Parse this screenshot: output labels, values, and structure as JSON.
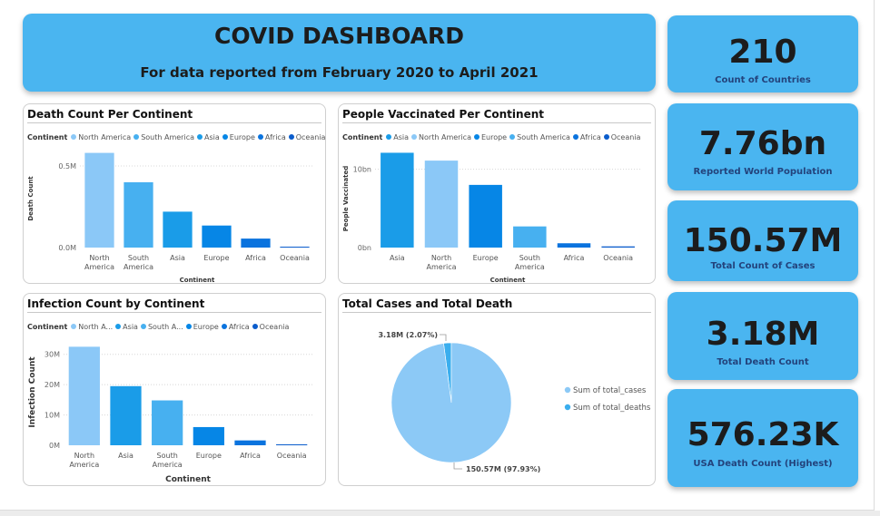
{
  "header": {
    "title": "COVID DASHBOARD",
    "subtitle": "For data reported from February 2020 to April 2021"
  },
  "kpis": [
    {
      "value": "210",
      "label": "Count of Countries"
    },
    {
      "value": "7.76bn",
      "label": "Reported World Population"
    },
    {
      "value": "150.57M",
      "label": "Total Count of Cases"
    },
    {
      "value": "3.18M",
      "label": "Total Death Count"
    },
    {
      "value": "576.23K",
      "label": "USA Death Count (Highest)"
    }
  ],
  "colors": {
    "accent": "#4ab5f0",
    "kpi_label": "#23437c",
    "north_america": "#8bc8f7",
    "south_america": "#47b0f0",
    "asia": "#1a9ce8",
    "europe": "#0686e6",
    "africa": "#0a73de",
    "oceania": "#0a5ccc",
    "pie_cases": "#8cc9f6",
    "pie_deaths": "#3aaeee"
  },
  "panels": {
    "death": {
      "title": "Death Count Per Continent",
      "legend_title": "Continent",
      "legend": [
        "North America",
        "South America",
        "Asia",
        "Europe",
        "Africa",
        "Oceania"
      ]
    },
    "vacc": {
      "title": "People Vaccinated Per Continent",
      "legend_title": "Continent",
      "legend": [
        "Asia",
        "North America",
        "Europe",
        "South America",
        "Africa",
        "Oceania"
      ]
    },
    "infection": {
      "title": "Infection Count by Continent",
      "legend_title": "Continent",
      "legend": [
        "North A...",
        "Asia",
        "South A...",
        "Europe",
        "Africa",
        "Oceania"
      ]
    },
    "pie": {
      "title": "Total Cases and Total Death"
    }
  },
  "chart_data": [
    {
      "type": "bar",
      "title": "Death Count Per Continent",
      "xlabel": "Continent",
      "ylabel": "Death Count",
      "categories": [
        "North America",
        "South America",
        "Asia",
        "Europe",
        "Africa",
        "Oceania"
      ],
      "category_lines": [
        [
          "North",
          "America"
        ],
        [
          "South",
          "America"
        ],
        [
          "Asia"
        ],
        [
          "Europe"
        ],
        [
          "Africa"
        ],
        [
          "Oceania"
        ]
      ],
      "values": [
        0.58,
        0.4,
        0.22,
        0.135,
        0.055,
        0.005
      ],
      "value_unit": "M",
      "ylim": [
        0,
        0.6
      ],
      "yticks": [
        {
          "v": 0,
          "label": "0.0M"
        },
        {
          "v": 0.5,
          "label": "0.5M"
        }
      ],
      "grid": true
    },
    {
      "type": "bar",
      "title": "People Vaccinated Per Continent",
      "xlabel": "Continent",
      "ylabel": "People Vaccinated",
      "categories": [
        "Asia",
        "North America",
        "Europe",
        "South America",
        "Africa",
        "Oceania"
      ],
      "category_lines": [
        [
          "Asia"
        ],
        [
          "North",
          "America"
        ],
        [
          "Europe"
        ],
        [
          "South",
          "America"
        ],
        [
          "Africa"
        ],
        [
          "Oceania"
        ]
      ],
      "values": [
        12.1,
        11.1,
        8.0,
        2.7,
        0.55,
        0.15
      ],
      "value_unit": "bn",
      "ylim": [
        0,
        12.5
      ],
      "yticks": [
        {
          "v": 0,
          "label": "0bn"
        },
        {
          "v": 10,
          "label": "10bn"
        }
      ],
      "grid": true
    },
    {
      "type": "bar",
      "title": "Infection Count by Continent",
      "xlabel": "Continent",
      "ylabel": "Infection Count",
      "categories": [
        "North America",
        "Asia",
        "South America",
        "Europe",
        "Africa",
        "Oceania"
      ],
      "category_lines": [
        [
          "North",
          "America"
        ],
        [
          "Asia"
        ],
        [
          "South",
          "America"
        ],
        [
          "Europe"
        ],
        [
          "Africa"
        ],
        [
          "Oceania"
        ]
      ],
      "values": [
        32.5,
        19.5,
        14.8,
        6.0,
        1.6,
        0.2
      ],
      "value_unit": "M",
      "ylim": [
        0,
        35
      ],
      "yticks": [
        {
          "v": 0,
          "label": "0M"
        },
        {
          "v": 10,
          "label": "10M"
        },
        {
          "v": 20,
          "label": "20M"
        },
        {
          "v": 30,
          "label": "30M"
        }
      ],
      "grid": true
    },
    {
      "type": "pie",
      "title": "Total Cases and Total Death",
      "slices": [
        {
          "name": "Sum of total_cases",
          "value": 150.57,
          "label": "150.57M (97.93%)"
        },
        {
          "name": "Sum of total_deaths",
          "value": 3.18,
          "label": "3.18M (2.07%)"
        }
      ],
      "legend_position": "right"
    }
  ]
}
